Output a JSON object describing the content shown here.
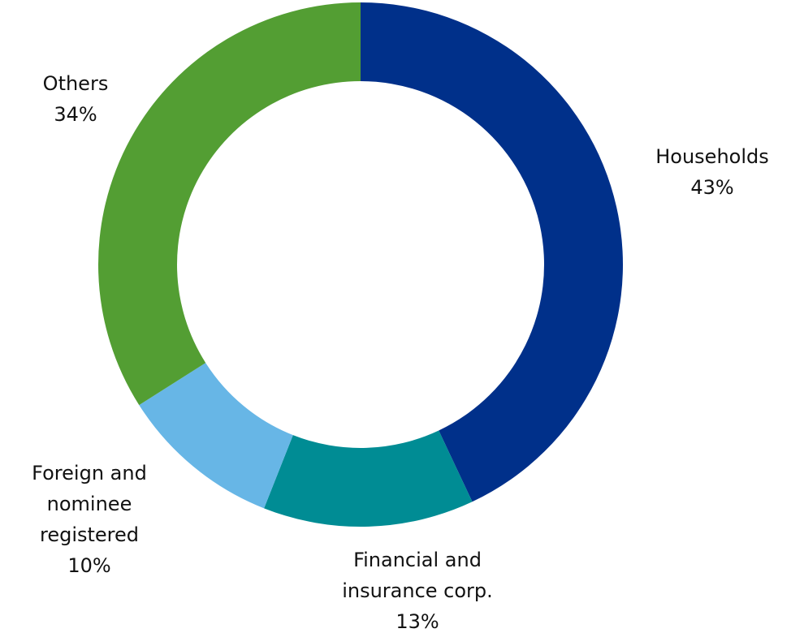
{
  "chart_data": {
    "type": "donut",
    "categories": [
      "Households",
      "Financial and insurance corp.",
      "Foreign and nominee registered",
      "Others"
    ],
    "values": [
      43,
      13,
      10,
      34
    ],
    "value_labels": [
      "43%",
      "13%",
      "10%",
      "34%"
    ],
    "colors": [
      "#00308a",
      "#008c94",
      "#67b6e6",
      "#539e33"
    ]
  }
}
